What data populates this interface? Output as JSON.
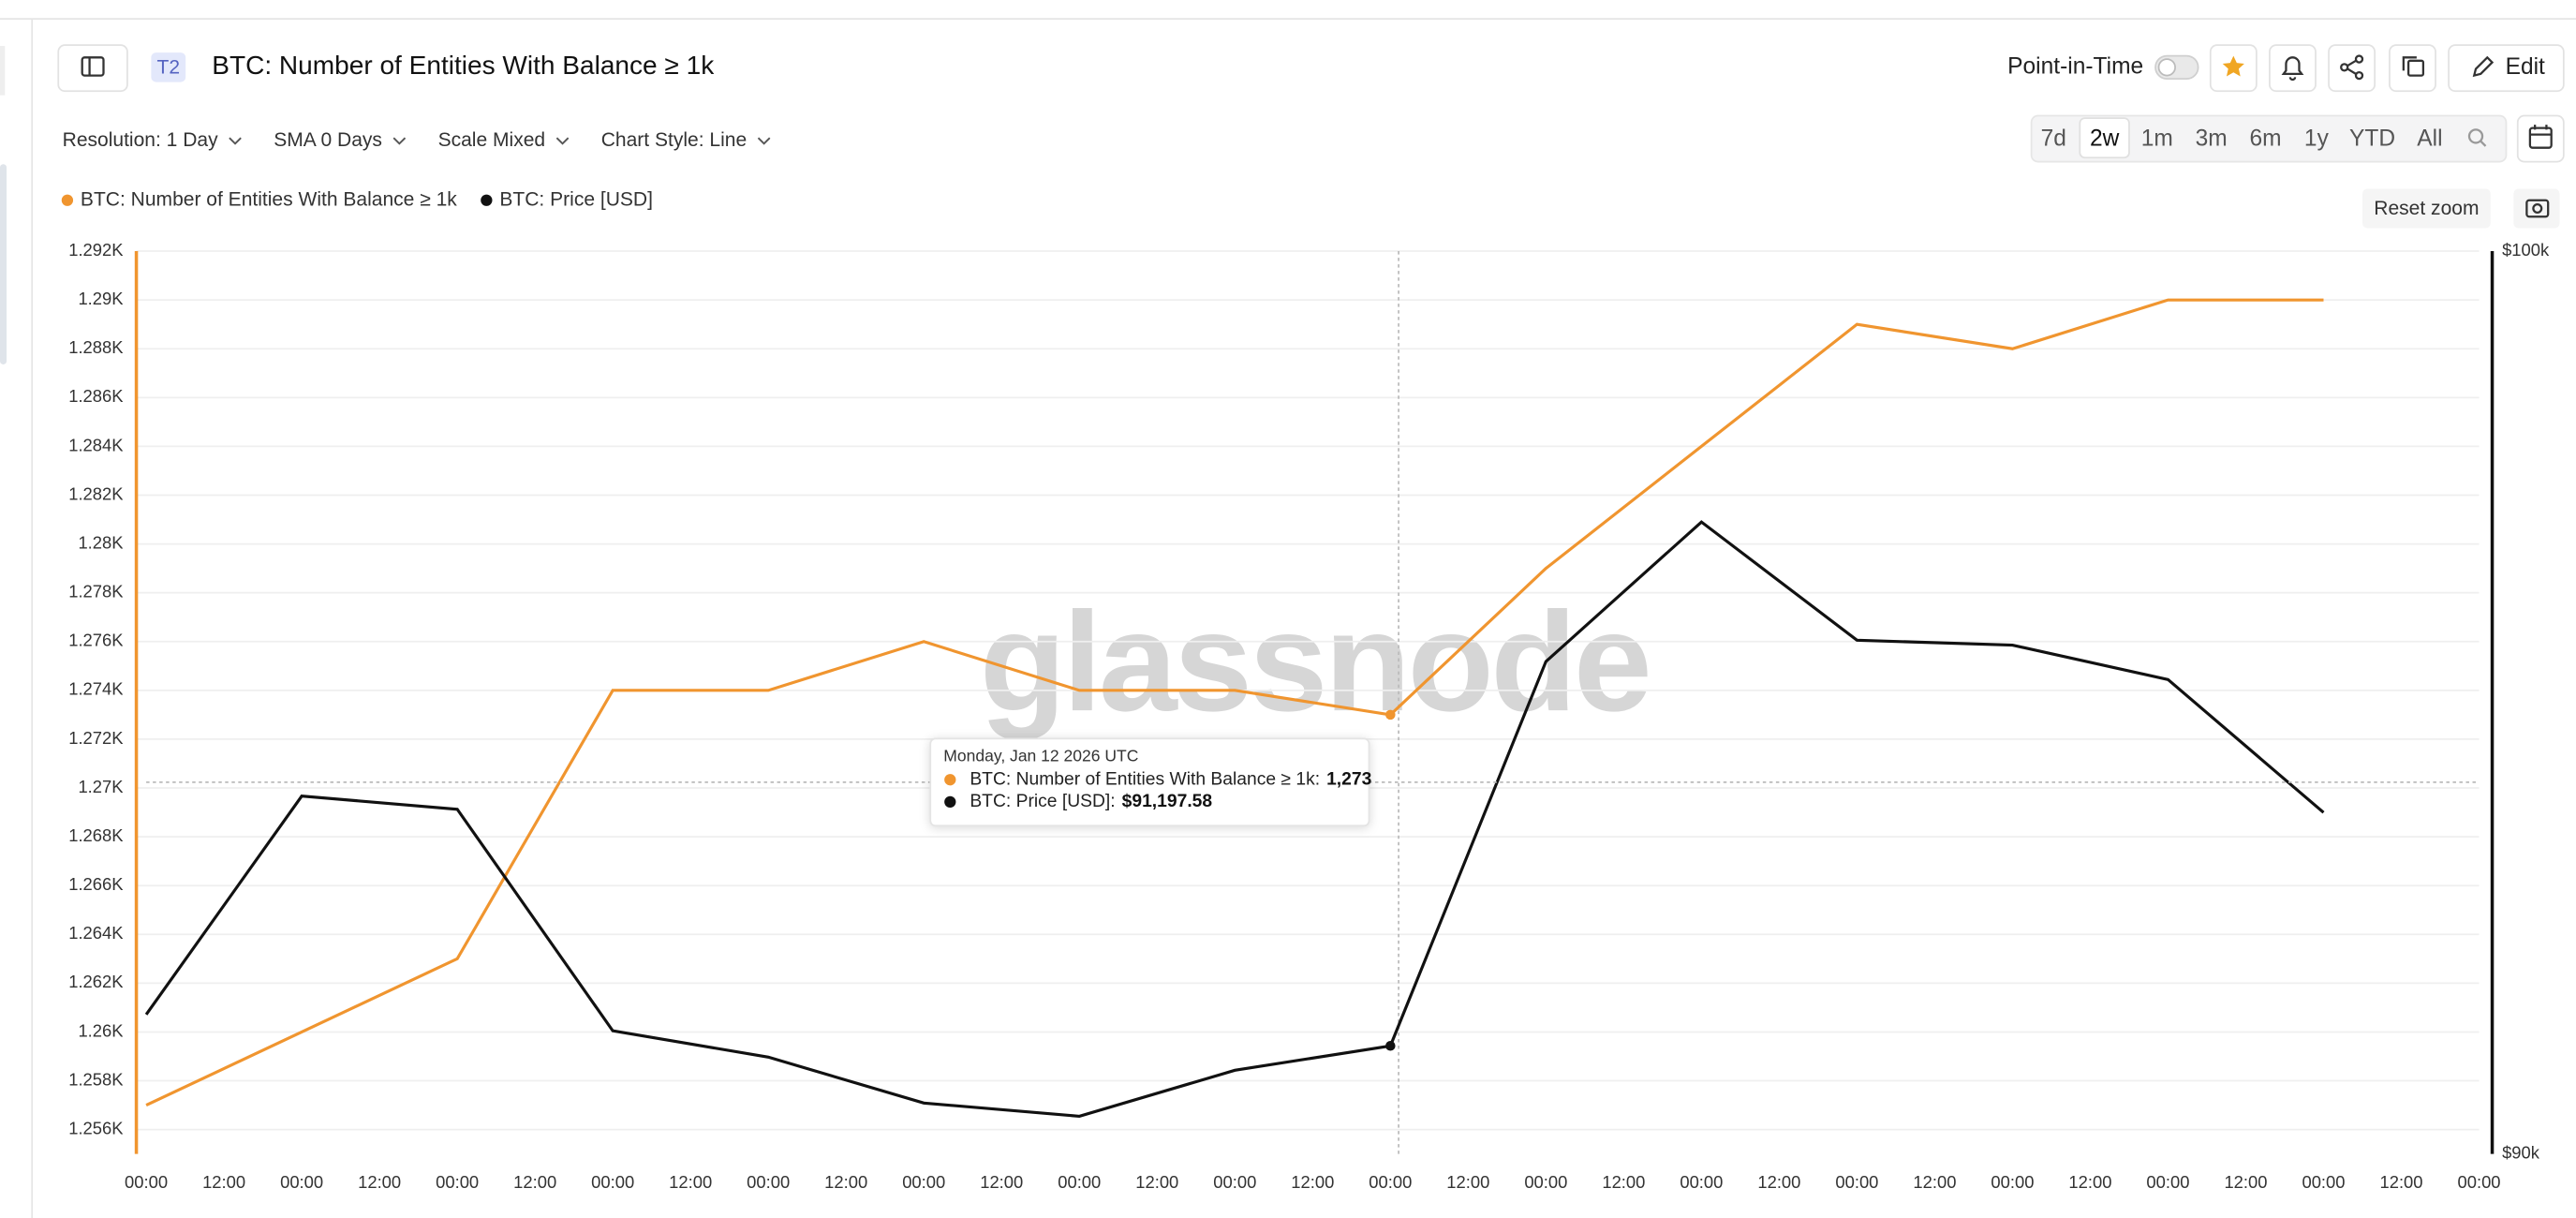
{
  "ui": {
    "badge": "T2",
    "title": "BTC: Number of Entities With Balance ≥ 1k",
    "point_in_time": "Point-in-Time",
    "edit": "Edit",
    "toolbar": [
      "Resolution: 1 Day",
      "SMA 0 Days",
      "Scale Mixed",
      "Chart Style: Line"
    ],
    "ranges": [
      "7d",
      "2w",
      "1m",
      "3m",
      "6m",
      "1y",
      "YTD",
      "All"
    ],
    "reset_zoom": "Reset zoom",
    "watermark": "glassnode"
  },
  "chart_data": {
    "type": "line",
    "x": [
      0,
      24,
      48,
      72,
      96,
      120,
      144,
      168,
      192,
      216,
      240,
      264,
      288,
      312,
      336
    ],
    "xlim": [
      0,
      360
    ],
    "xticks": [
      {
        "value": 0,
        "label": "00:00"
      },
      {
        "value": 12,
        "label": "12:00"
      },
      {
        "value": 24,
        "label": "00:00"
      },
      {
        "value": 36,
        "label": "12:00"
      },
      {
        "value": 48,
        "label": "00:00"
      },
      {
        "value": 60,
        "label": "12:00"
      },
      {
        "value": 72,
        "label": "00:00"
      },
      {
        "value": 84,
        "label": "12:00"
      },
      {
        "value": 96,
        "label": "00:00"
      },
      {
        "value": 108,
        "label": "12:00"
      },
      {
        "value": 120,
        "label": "00:00"
      },
      {
        "value": 132,
        "label": "12:00"
      },
      {
        "value": 144,
        "label": "00:00"
      },
      {
        "value": 156,
        "label": "12:00"
      },
      {
        "value": 168,
        "label": "00:00"
      },
      {
        "value": 180,
        "label": "12:00"
      },
      {
        "value": 192,
        "label": "00:00"
      },
      {
        "value": 204,
        "label": "12:00"
      },
      {
        "value": 216,
        "label": "00:00"
      },
      {
        "value": 228,
        "label": "12:00"
      },
      {
        "value": 240,
        "label": "00:00"
      },
      {
        "value": 252,
        "label": "12:00"
      },
      {
        "value": 264,
        "label": "00:00"
      },
      {
        "value": 276,
        "label": "12:00"
      },
      {
        "value": 288,
        "label": "00:00"
      },
      {
        "value": 300,
        "label": "12:00"
      },
      {
        "value": 312,
        "label": "00:00"
      },
      {
        "value": 324,
        "label": "12:00"
      },
      {
        "value": 336,
        "label": "00:00"
      },
      {
        "value": 348,
        "label": "12:00"
      },
      {
        "value": 360,
        "label": "00:00"
      }
    ],
    "ylim": [
      1255,
      1292
    ],
    "yticks": [
      {
        "value": 1256,
        "label": "1.256K"
      },
      {
        "value": 1258,
        "label": "1.258K"
      },
      {
        "value": 1260,
        "label": "1.26K"
      },
      {
        "value": 1262,
        "label": "1.262K"
      },
      {
        "value": 1264,
        "label": "1.264K"
      },
      {
        "value": 1266,
        "label": "1.266K"
      },
      {
        "value": 1268,
        "label": "1.268K"
      },
      {
        "value": 1270,
        "label": "1.27K"
      },
      {
        "value": 1272,
        "label": "1.272K"
      },
      {
        "value": 1274,
        "label": "1.274K"
      },
      {
        "value": 1276,
        "label": "1.276K"
      },
      {
        "value": 1278,
        "label": "1.278K"
      },
      {
        "value": 1280,
        "label": "1.28K"
      },
      {
        "value": 1282,
        "label": "1.282K"
      },
      {
        "value": 1284,
        "label": "1.284K"
      },
      {
        "value": 1286,
        "label": "1.286K"
      },
      {
        "value": 1288,
        "label": "1.288K"
      },
      {
        "value": 1290,
        "label": "1.29K"
      },
      {
        "value": 1292,
        "label": "1.292K"
      }
    ],
    "y2lim": [
      90000,
      100000
    ],
    "y2ticks": [
      {
        "value": 90000,
        "label": "$90k"
      },
      {
        "value": 100000,
        "label": "$100k"
      }
    ],
    "grid": true,
    "series": [
      {
        "name": "BTC: Number of Entities With Balance ≥ 1k",
        "color": "#f0952f",
        "values": [
          1257,
          1260,
          1263,
          1274,
          1274,
          1276,
          1274,
          1274,
          1273,
          1279,
          1284,
          1289,
          1288,
          1290,
          1290
        ],
        "value_labels": [
          null,
          null,
          null,
          null,
          null,
          null,
          null,
          null,
          "1,273",
          null,
          null,
          null,
          null,
          null,
          null
        ]
      },
      {
        "name": "BTC: Price [USD]",
        "color": "#111111",
        "axis": "y2",
        "values": [
          91545,
          93964,
          93818,
          91364,
          91073,
          90564,
          90418,
          90927,
          91197.58,
          95455,
          97000,
          95691,
          95636,
          95255,
          93782
        ],
        "value_labels": [
          null,
          null,
          null,
          null,
          null,
          null,
          null,
          null,
          "$91,197.58",
          null,
          null,
          null,
          null,
          null,
          null
        ]
      }
    ],
    "tooltip": {
      "title": "Monday, Jan 12 2026 UTC",
      "entries": [
        "BTC: Number of Entities With Balance ≥ 1k:",
        "BTC: Price [USD]:"
      ]
    }
  }
}
